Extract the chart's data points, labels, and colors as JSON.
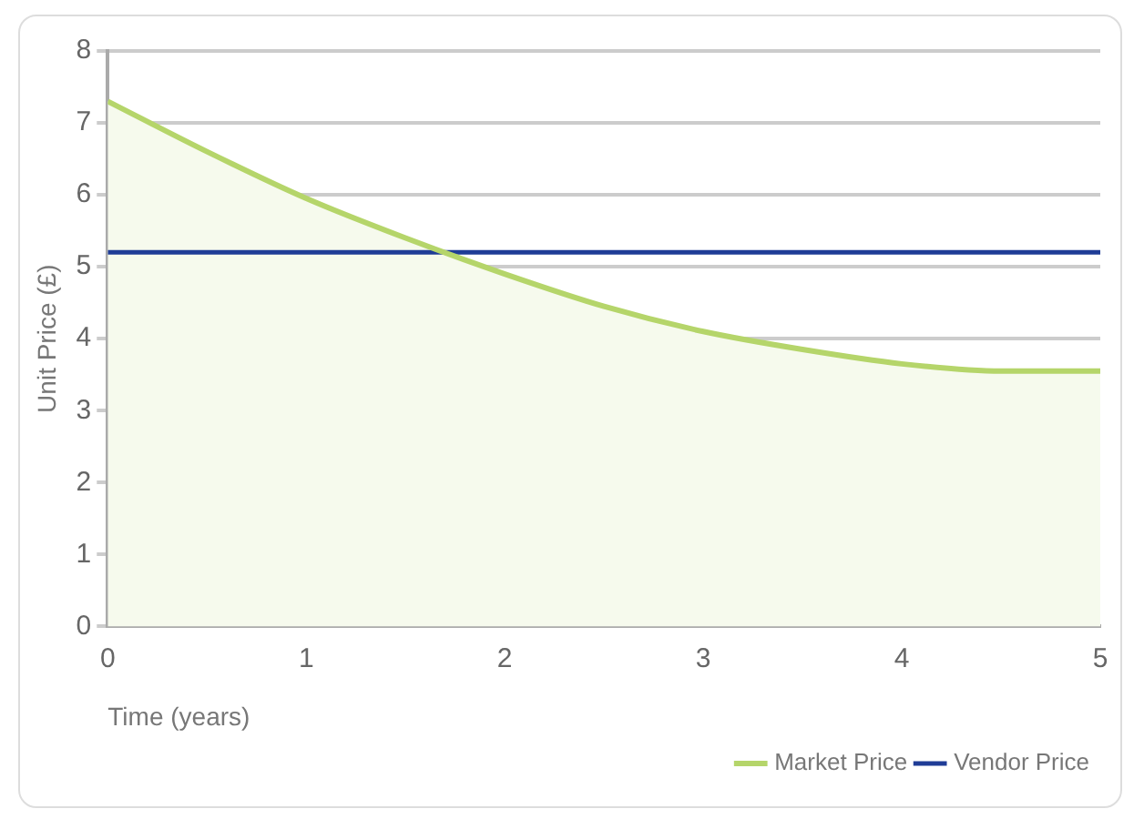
{
  "chart_data": {
    "type": "line",
    "xlabel": "Time (years)",
    "ylabel": "Unit Price (£)",
    "x": [
      0,
      0.5,
      1,
      1.5,
      2,
      2.5,
      3,
      3.5,
      4,
      4.5,
      5
    ],
    "series": [
      {
        "name": "Market Price",
        "type": "area",
        "color": "#b5d56a",
        "values": [
          7.3,
          6.6,
          5.95,
          5.4,
          4.9,
          4.45,
          4.1,
          3.85,
          3.65,
          3.55,
          3.55
        ]
      },
      {
        "name": "Vendor Price",
        "type": "line",
        "color": "#1f3c96",
        "values": [
          5.2,
          5.2,
          5.2,
          5.2,
          5.2,
          5.2,
          5.2,
          5.2,
          5.2,
          5.2,
          5.2
        ]
      }
    ],
    "xlim": [
      0,
      5
    ],
    "xticks": [
      0,
      1,
      2,
      3,
      4,
      5
    ],
    "ylim": [
      0,
      8
    ],
    "yticks": [
      0,
      1,
      2,
      3,
      4,
      5,
      6,
      7,
      8
    ],
    "grid": "y",
    "legend": "bottom right",
    "marker": "none",
    "line_style": "solid"
  }
}
